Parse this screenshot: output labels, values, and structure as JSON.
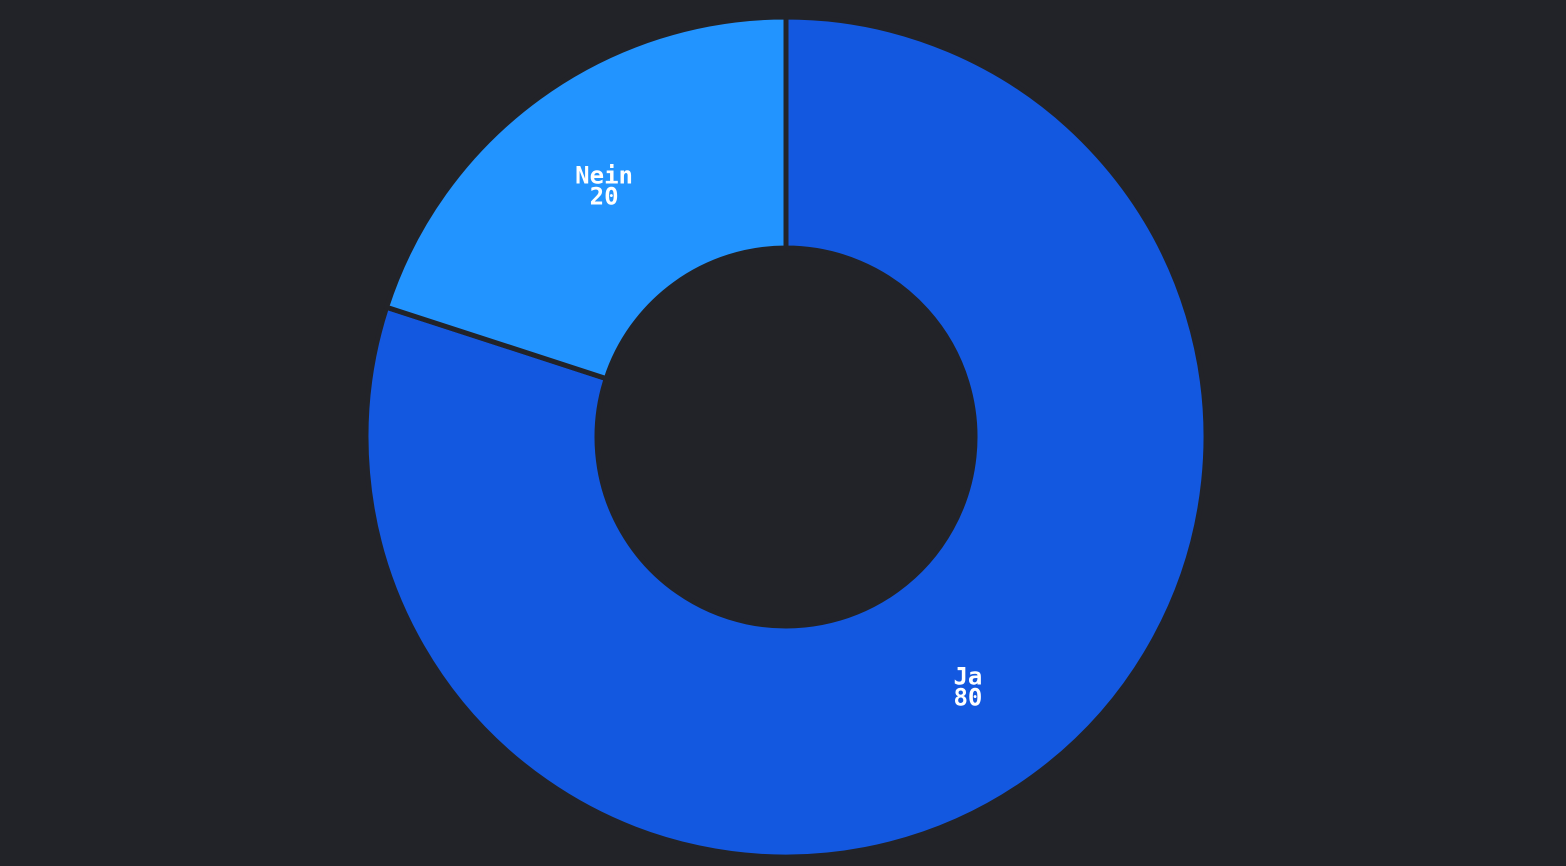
{
  "chart_data": {
    "type": "pie",
    "donut": true,
    "background_color": "#222328",
    "slices": [
      {
        "label": "Ja",
        "value": 80,
        "color": "#1358E0"
      },
      {
        "label": "Nein",
        "value": 20,
        "color": "#2294FF"
      }
    ]
  }
}
